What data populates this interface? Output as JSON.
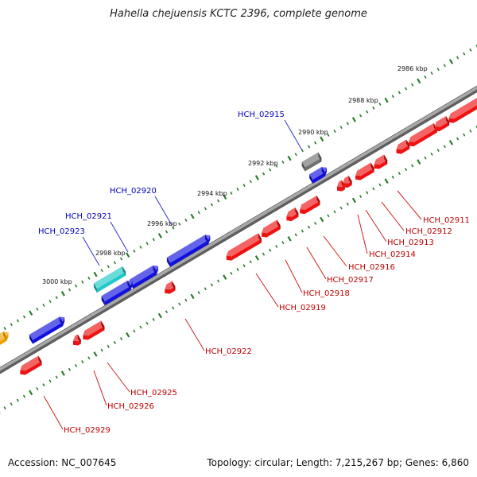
{
  "title": "Hahella chejuensis KCTC 2396, complete genome",
  "footer": {
    "accession": "Accession: NC_007645",
    "summary": "Topology: circular; Length: 7,215,267 bp; Genes: 6,860"
  },
  "colors": {
    "forward_gene": "#1010e0",
    "reverse_gene": "#ee1111",
    "rna_gene": "#20c8c8",
    "pseudo_gene": "#707070",
    "other_gene": "#f0a000",
    "backbone": "#8a8a8a",
    "ticks": "#2a7a2a",
    "forward_label": "#0000bb",
    "reverse_label": "#bb0000"
  },
  "kbp_marks": [
    "2986 kbp",
    "2988 kbp",
    "2990 kbp",
    "2992 kbp",
    "2994 kbp",
    "2996 kbp",
    "2998 kbp",
    "3000 kbp"
  ],
  "forward_labels": [
    "HCH_02915",
    "HCH_02920",
    "HCH_02921",
    "HCH_02923"
  ],
  "reverse_labels": [
    "HCH_02911",
    "HCH_02912",
    "HCH_02913",
    "HCH_02914",
    "HCH_02916",
    "HCH_02917",
    "HCH_02918",
    "HCH_02919",
    "HCH_02922",
    "HCH_02925",
    "HCH_02926",
    "HCH_02929"
  ]
}
